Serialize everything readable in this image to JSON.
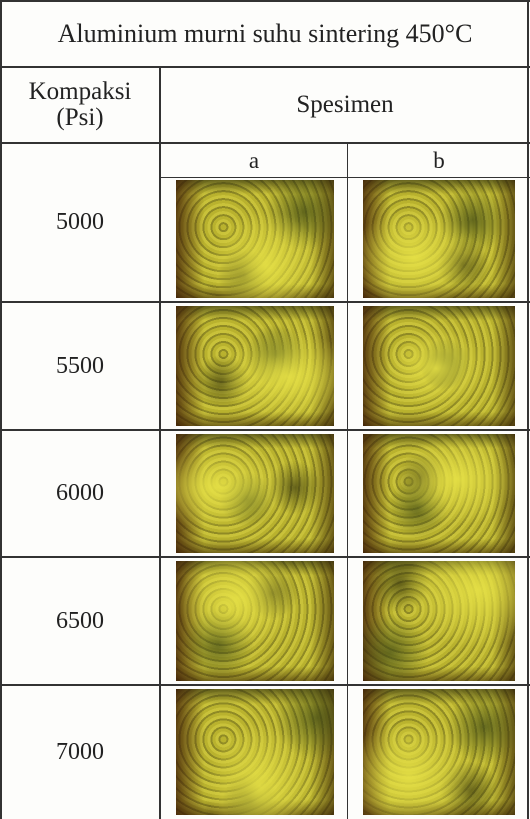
{
  "table": {
    "title": "Aluminium murni suhu sintering 450°C",
    "header": {
      "compaction": [
        "Kompaksi",
        "(Psi)"
      ],
      "specimen": "Spesimen",
      "sub": [
        "a",
        "b"
      ]
    },
    "rows": [
      5000,
      5500,
      6000,
      6500,
      7000
    ]
  }
}
